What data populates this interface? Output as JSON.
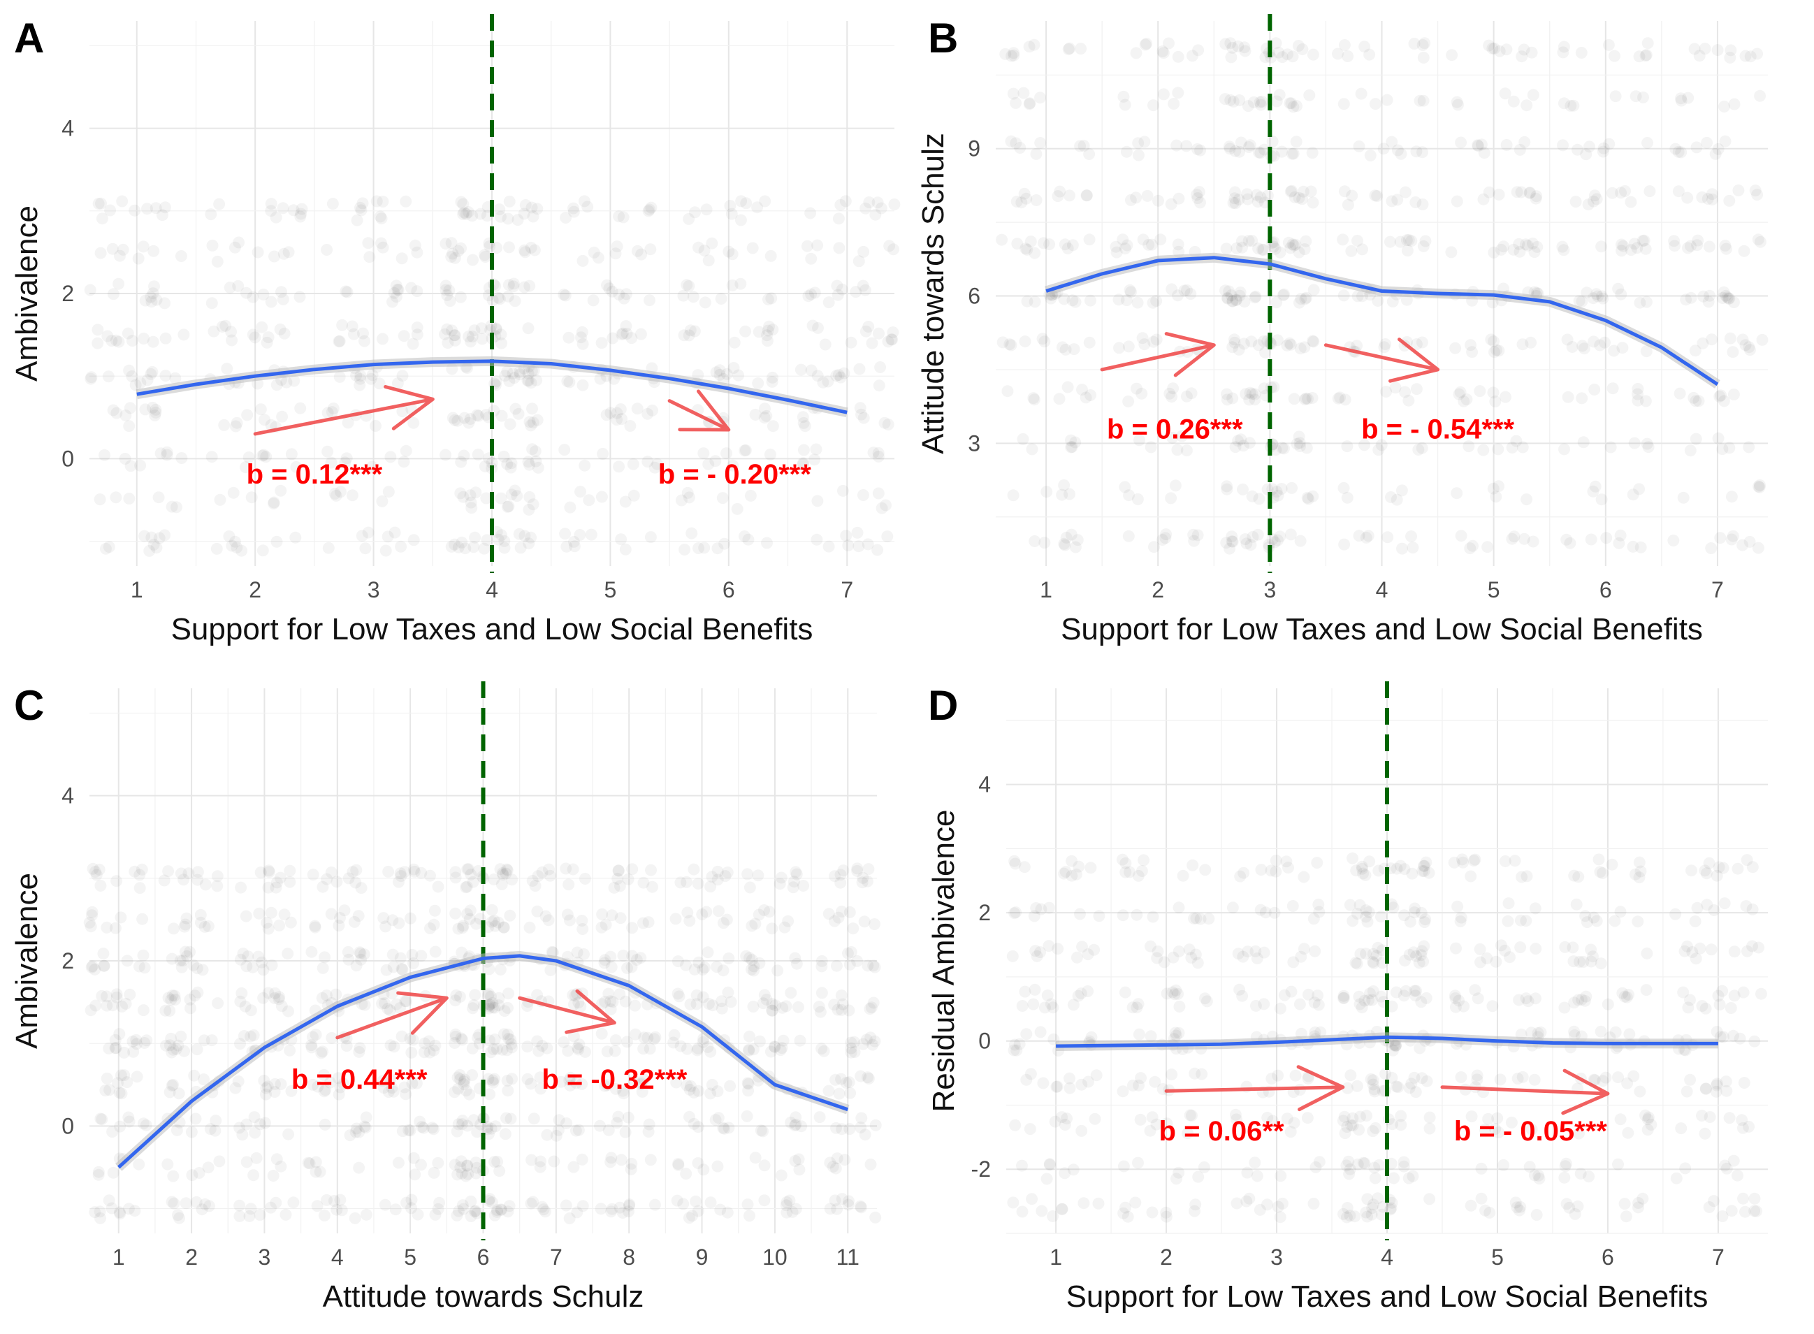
{
  "colors": {
    "points": "#000000",
    "smooth": "#3366ee",
    "ribbon": "#bdbdbd",
    "vline": "#006400",
    "arrow": "#ee4444",
    "coef_text": "#ff0000",
    "grid": "#e6e6e6"
  },
  "chart_data": [
    {
      "panel": "A",
      "type": "scatter",
      "xlabel": "Support for Low Taxes and Low Social Benefits",
      "ylabel": "Ambivalence",
      "x_ticks": [
        "1",
        "2",
        "3",
        "4",
        "5",
        "6",
        "7"
      ],
      "y_ticks": [
        "0",
        "2",
        "4"
      ],
      "xlim": [
        0.6,
        7.4
      ],
      "ylim": [
        -1.3,
        5.3
      ],
      "points_x": [
        1,
        2,
        3,
        4,
        5,
        6,
        7
      ],
      "points_y": [
        -1,
        -0.5,
        0,
        0.5,
        1,
        1.5,
        2,
        2.5,
        3
      ],
      "vline_x": 4,
      "smooth": {
        "x": [
          1,
          1.5,
          2,
          2.5,
          3,
          3.5,
          4,
          4.5,
          5,
          5.5,
          6,
          6.5,
          7
        ],
        "y": [
          0.78,
          0.9,
          1.0,
          1.08,
          1.14,
          1.17,
          1.18,
          1.15,
          1.07,
          0.97,
          0.85,
          0.71,
          0.56
        ]
      },
      "coefficients": [
        {
          "label": "b = 0.12***",
          "x": 2.5,
          "y": -0.3
        },
        {
          "label": "b = - 0.20***",
          "x": 6.05,
          "y": -0.3
        }
      ],
      "arrows": [
        {
          "from": [
            2.0,
            0.3
          ],
          "to": [
            3.5,
            0.72
          ]
        },
        {
          "from": [
            5.5,
            0.7
          ],
          "to": [
            6.0,
            0.35
          ]
        }
      ]
    },
    {
      "panel": "B",
      "type": "scatter",
      "xlabel": "Support for Low Taxes and Low Social Benefits",
      "ylabel": "Attitude towards Schulz",
      "x_ticks": [
        "1",
        "2",
        "3",
        "4",
        "5",
        "6",
        "7"
      ],
      "y_ticks": [
        "3",
        "6",
        "9"
      ],
      "xlim": [
        0.55,
        7.45
      ],
      "ylim": [
        0.5,
        11.6
      ],
      "points_x": [
        1,
        2,
        3,
        4,
        5,
        6,
        7
      ],
      "points_y": [
        1,
        2,
        3,
        4,
        5,
        6,
        7,
        8,
        9,
        10,
        11
      ],
      "vline_x": 3,
      "smooth": {
        "x": [
          1,
          1.5,
          2,
          2.5,
          3,
          3.5,
          4,
          4.5,
          5,
          5.5,
          6,
          6.5,
          7
        ],
        "y": [
          6.1,
          6.45,
          6.72,
          6.78,
          6.65,
          6.35,
          6.1,
          6.05,
          6.02,
          5.88,
          5.5,
          4.95,
          4.2
        ]
      },
      "coefficients": [
        {
          "label": "b = 0.26***",
          "x": 2.15,
          "y": 3.1
        },
        {
          "label": "b = - 0.54***",
          "x": 4.5,
          "y": 3.1
        }
      ],
      "arrows": [
        {
          "from": [
            1.5,
            4.5
          ],
          "to": [
            2.5,
            5.0
          ]
        },
        {
          "from": [
            3.5,
            5.0
          ],
          "to": [
            4.5,
            4.5
          ]
        }
      ]
    },
    {
      "panel": "C",
      "type": "scatter",
      "xlabel": "Attitude towards Schulz",
      "ylabel": "Ambivalence",
      "x_ticks": [
        "1",
        "2",
        "3",
        "4",
        "5",
        "6",
        "7",
        "8",
        "9",
        "10",
        "11"
      ],
      "y_ticks": [
        "0",
        "2",
        "4"
      ],
      "xlim": [
        0.6,
        11.4
      ],
      "ylim": [
        -1.3,
        5.3
      ],
      "points_x": [
        1,
        2,
        3,
        4,
        5,
        6,
        7,
        8,
        9,
        10,
        11
      ],
      "points_y": [
        -1,
        -0.5,
        0,
        0.5,
        1,
        1.5,
        2,
        2.5,
        3
      ],
      "vline_x": 6,
      "smooth": {
        "x": [
          1,
          2,
          3,
          4,
          5,
          6,
          6.5,
          7,
          8,
          9,
          10,
          11
        ],
        "y": [
          -0.5,
          0.3,
          0.95,
          1.45,
          1.8,
          2.03,
          2.06,
          2.0,
          1.7,
          1.2,
          0.5,
          0.2
        ]
      },
      "coefficients": [
        {
          "label": "b = 0.44***",
          "x": 4.3,
          "y": 0.45
        },
        {
          "label": "b = -0.32***",
          "x": 7.8,
          "y": 0.45
        }
      ],
      "arrows": [
        {
          "from": [
            4.0,
            1.07
          ],
          "to": [
            5.5,
            1.55
          ]
        },
        {
          "from": [
            6.5,
            1.55
          ],
          "to": [
            7.8,
            1.25
          ]
        }
      ]
    },
    {
      "panel": "D",
      "type": "scatter",
      "xlabel": "Support for Low Taxes and Low Social Benefits",
      "ylabel": "Residual Ambivalence",
      "x_ticks": [
        "1",
        "2",
        "3",
        "4",
        "5",
        "6",
        "7"
      ],
      "y_ticks": [
        "-2",
        "0",
        "2",
        "4"
      ],
      "xlim": [
        0.55,
        7.45
      ],
      "ylim": [
        -3.0,
        5.5
      ],
      "points_x": [
        1,
        2,
        3,
        4,
        5,
        6,
        7
      ],
      "points_y": [
        -2.6,
        -2.0,
        -1.3,
        -0.65,
        0,
        0.65,
        1.35,
        2.0,
        2.7
      ],
      "vline_x": 4,
      "smooth": {
        "x": [
          1,
          1.5,
          2,
          2.5,
          3,
          3.5,
          4,
          4.5,
          5,
          5.5,
          6,
          6.5,
          7
        ],
        "y": [
          -0.08,
          -0.07,
          -0.06,
          -0.05,
          -0.02,
          0.02,
          0.06,
          0.04,
          0.0,
          -0.03,
          -0.04,
          -0.04,
          -0.04
        ]
      },
      "coefficients": [
        {
          "label": "b = 0.06**",
          "x": 2.5,
          "y": -1.55
        },
        {
          "label": "b = - 0.05***",
          "x": 5.3,
          "y": -1.55
        }
      ],
      "arrows": [
        {
          "from": [
            2.0,
            -0.78
          ],
          "to": [
            3.6,
            -0.72
          ]
        },
        {
          "from": [
            4.5,
            -0.72
          ],
          "to": [
            6.0,
            -0.82
          ]
        }
      ]
    }
  ]
}
